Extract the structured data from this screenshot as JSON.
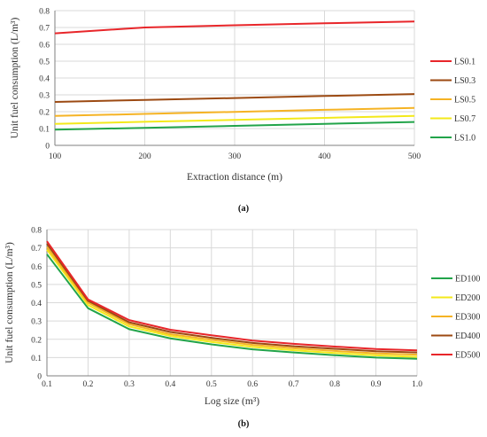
{
  "chart_data": [
    {
      "type": "line",
      "caption": "(a)",
      "xlabel": "Extraction distance (m)",
      "ylabel": "Unit fuel consumption (L/m³)",
      "x": [
        100,
        200,
        300,
        400,
        500
      ],
      "xlim": [
        100,
        500
      ],
      "ylim": [
        0,
        0.8
      ],
      "xticks": [
        "100",
        "200",
        "300",
        "400",
        "500"
      ],
      "yticks": [
        "0",
        "0.1",
        "0.2",
        "0.3",
        "0.4",
        "0.5",
        "0.6",
        "0.7",
        "0.8"
      ],
      "grid": true,
      "legend_position": "right",
      "series": [
        {
          "name": "LS0.1",
          "color": "#e8262a",
          "values": [
            0.665,
            0.7,
            0.713,
            0.725,
            0.736
          ]
        },
        {
          "name": "LS0.3",
          "color": "#9c4a12",
          "values": [
            0.258,
            0.27,
            0.281,
            0.293,
            0.305
          ]
        },
        {
          "name": "LS0.5",
          "color": "#f5b324",
          "values": [
            0.175,
            0.187,
            0.199,
            0.211,
            0.222
          ]
        },
        {
          "name": "LS0.7",
          "color": "#f3e91b",
          "values": [
            0.128,
            0.14,
            0.151,
            0.163,
            0.175
          ]
        },
        {
          "name": "LS1.0",
          "color": "#22a44a",
          "values": [
            0.093,
            0.104,
            0.116,
            0.128,
            0.139
          ]
        }
      ]
    },
    {
      "type": "line",
      "caption": "(b)",
      "xlabel": "Log size (m³)",
      "ylabel": "Unit fuel consumption (L/m³)",
      "x": [
        0.1,
        0.2,
        0.3,
        0.4,
        0.5,
        0.6,
        0.7,
        0.8,
        0.9,
        1.0
      ],
      "xlim": [
        0.1,
        1.0
      ],
      "ylim": [
        0,
        0.8
      ],
      "xticks": [
        "0.1",
        "0.2",
        "0.3",
        "0.4",
        "0.5",
        "0.6",
        "0.7",
        "0.8",
        "0.9",
        "1.0"
      ],
      "yticks": [
        "0",
        "0.1",
        "0.2",
        "0.3",
        "0.4",
        "0.5",
        "0.6",
        "0.7",
        "0.8"
      ],
      "grid": true,
      "legend_position": "right",
      "series": [
        {
          "name": "ED100",
          "color": "#22a44a",
          "values": [
            0.665,
            0.37,
            0.255,
            0.205,
            0.172,
            0.145,
            0.128,
            0.113,
            0.1,
            0.093
          ]
        },
        {
          "name": "ED200",
          "color": "#f3e91b",
          "values": [
            0.69,
            0.387,
            0.27,
            0.218,
            0.185,
            0.158,
            0.14,
            0.125,
            0.112,
            0.104
          ]
        },
        {
          "name": "ED300",
          "color": "#f5b324",
          "values": [
            0.705,
            0.4,
            0.282,
            0.228,
            0.197,
            0.169,
            0.151,
            0.136,
            0.123,
            0.116
          ]
        },
        {
          "name": "ED400",
          "color": "#9c4a12",
          "values": [
            0.722,
            0.41,
            0.293,
            0.24,
            0.208,
            0.18,
            0.162,
            0.148,
            0.135,
            0.128
          ]
        },
        {
          "name": "ED500",
          "color": "#e8262a",
          "values": [
            0.736,
            0.418,
            0.305,
            0.252,
            0.222,
            0.193,
            0.175,
            0.16,
            0.147,
            0.139
          ]
        }
      ]
    }
  ]
}
